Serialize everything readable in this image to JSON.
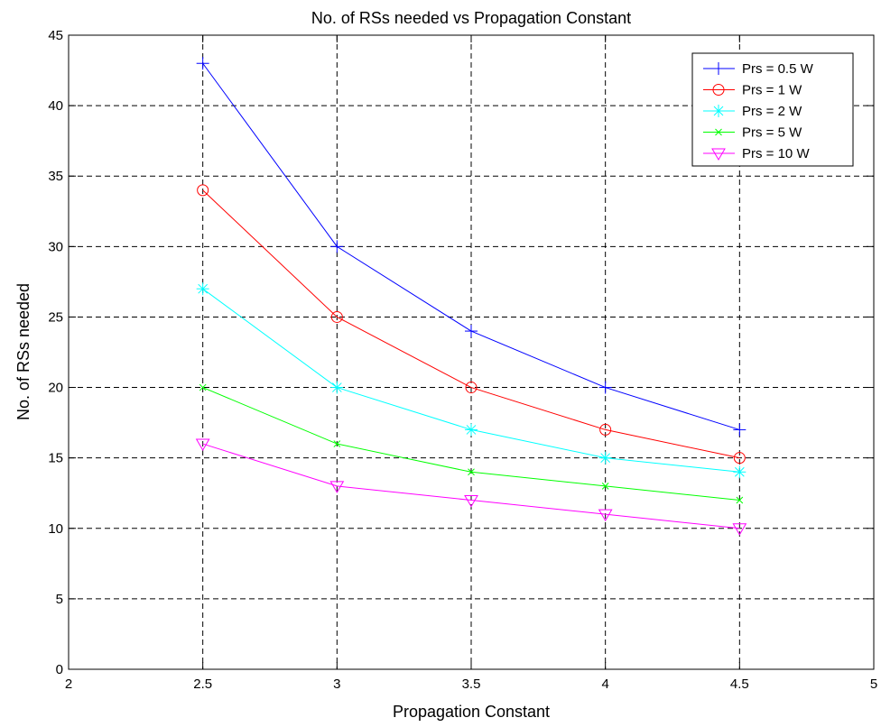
{
  "chart_data": {
    "type": "line",
    "title": "No. of RSs needed vs Propagation Constant",
    "xlabel": "Propagation Constant",
    "ylabel": "No. of RSs needed",
    "xlim": [
      2,
      5
    ],
    "ylim": [
      0,
      45
    ],
    "xticks": [
      2,
      2.5,
      3,
      3.5,
      4,
      4.5,
      5
    ],
    "xtick_labels": [
      "2",
      "2.5",
      "3",
      "3.5",
      "4",
      "4.5",
      "5"
    ],
    "yticks": [
      0,
      5,
      10,
      15,
      20,
      25,
      30,
      35,
      40,
      45
    ],
    "ytick_labels": [
      "0",
      "5",
      "10",
      "15",
      "20",
      "25",
      "30",
      "35",
      "40",
      "45"
    ],
    "grid": true,
    "legend_position": "top-right",
    "x": [
      2.5,
      3,
      3.5,
      4,
      4.5
    ],
    "series": [
      {
        "name": "Prs = 0.5 W",
        "values": [
          43,
          30,
          24,
          20,
          17
        ],
        "color": "#0000ff",
        "marker": "plus"
      },
      {
        "name": "Prs = 1 W",
        "values": [
          34,
          25,
          20,
          17,
          15
        ],
        "color": "#ff0000",
        "marker": "circle"
      },
      {
        "name": "Prs = 2 W",
        "values": [
          27,
          20,
          17,
          15,
          14
        ],
        "color": "#00ffff",
        "marker": "star"
      },
      {
        "name": "Prs = 5 W",
        "values": [
          20,
          16,
          14,
          13,
          12
        ],
        "color": "#00ff00",
        "marker": "x"
      },
      {
        "name": "Prs = 10 W",
        "values": [
          16,
          13,
          12,
          11,
          10
        ],
        "color": "#ff00ff",
        "marker": "triangle-down"
      }
    ]
  }
}
